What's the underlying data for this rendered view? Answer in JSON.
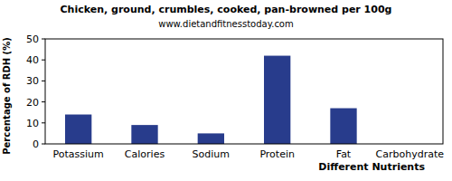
{
  "chart_data": {
    "type": "bar",
    "title": "Chicken, ground, crumbles, cooked, pan-browned per 100g",
    "subtitle": "www.dietandfitnesstoday.com",
    "x_label": "Different Nutrients",
    "y_label": "Percentage of RDH (%)",
    "categories": [
      "Potassium",
      "Calories",
      "Sodium",
      "Protein",
      "Fat",
      "Carbohydrate"
    ],
    "values": [
      14,
      9,
      5,
      42,
      17,
      0
    ],
    "color": "#283c8c",
    "ylim": [
      0,
      50
    ],
    "yticks": [
      0,
      10,
      20,
      30,
      40,
      50
    ],
    "grid": false
  }
}
